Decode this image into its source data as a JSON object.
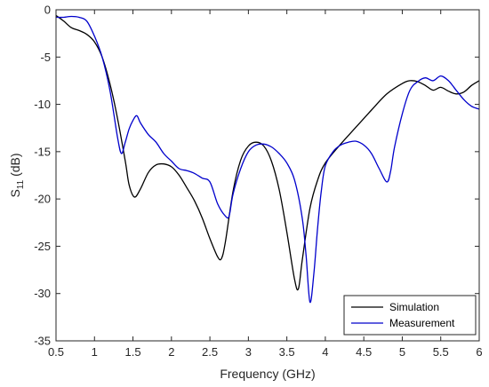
{
  "chart_data": {
    "type": "line",
    "title": "",
    "xlabel": "Frequency (GHz)",
    "ylabel_main": "S",
    "ylabel_sub": "11",
    "ylabel_unit": " (dB)",
    "xlim": [
      0.5,
      6
    ],
    "ylim": [
      -35,
      0
    ],
    "xticks": [
      0.5,
      1,
      1.5,
      2,
      2.5,
      3,
      3.5,
      4,
      4.5,
      5,
      5.5,
      6
    ],
    "xtick_labels": [
      "0.5",
      "1",
      "1.5",
      "2",
      "2.5",
      "3",
      "3.5",
      "4",
      "4.5",
      "5",
      "5.5",
      "6"
    ],
    "yticks": [
      0,
      -5,
      -10,
      -15,
      -20,
      -25,
      -30,
      -35
    ],
    "ytick_labels": [
      "0",
      "-5",
      "-10",
      "-15",
      "-20",
      "-25",
      "-30",
      "-35"
    ],
    "grid": false,
    "legend_position": "bottom-right",
    "series": [
      {
        "name": "Simulation",
        "color": "#000000",
        "points": [
          [
            0.5,
            -0.6
          ],
          [
            0.6,
            -1.2
          ],
          [
            0.7,
            -1.9
          ],
          [
            0.8,
            -2.2
          ],
          [
            0.9,
            -2.6
          ],
          [
            1.0,
            -3.4
          ],
          [
            1.1,
            -5.0
          ],
          [
            1.2,
            -7.8
          ],
          [
            1.3,
            -11.5
          ],
          [
            1.4,
            -16.0
          ],
          [
            1.45,
            -18.5
          ],
          [
            1.52,
            -19.8
          ],
          [
            1.6,
            -18.9
          ],
          [
            1.7,
            -17.2
          ],
          [
            1.8,
            -16.4
          ],
          [
            1.9,
            -16.3
          ],
          [
            2.0,
            -16.6
          ],
          [
            2.1,
            -17.5
          ],
          [
            2.2,
            -18.8
          ],
          [
            2.3,
            -20.2
          ],
          [
            2.4,
            -22.0
          ],
          [
            2.5,
            -24.2
          ],
          [
            2.6,
            -26.1
          ],
          [
            2.65,
            -26.3
          ],
          [
            2.7,
            -24.6
          ],
          [
            2.8,
            -19.2
          ],
          [
            2.9,
            -15.9
          ],
          [
            3.0,
            -14.4
          ],
          [
            3.1,
            -14.0
          ],
          [
            3.2,
            -14.4
          ],
          [
            3.3,
            -16.0
          ],
          [
            3.4,
            -19.0
          ],
          [
            3.5,
            -23.5
          ],
          [
            3.6,
            -28.5
          ],
          [
            3.65,
            -29.5
          ],
          [
            3.7,
            -26.5
          ],
          [
            3.8,
            -21.0
          ],
          [
            3.9,
            -18.0
          ],
          [
            4.0,
            -16.2
          ],
          [
            4.2,
            -14.2
          ],
          [
            4.4,
            -12.4
          ],
          [
            4.6,
            -10.6
          ],
          [
            4.8,
            -8.9
          ],
          [
            5.0,
            -7.8
          ],
          [
            5.1,
            -7.5
          ],
          [
            5.2,
            -7.6
          ],
          [
            5.3,
            -8.0
          ],
          [
            5.4,
            -8.5
          ],
          [
            5.5,
            -8.2
          ],
          [
            5.6,
            -8.6
          ],
          [
            5.7,
            -8.9
          ],
          [
            5.8,
            -8.7
          ],
          [
            5.9,
            -8.0
          ],
          [
            6.0,
            -7.5
          ]
        ]
      },
      {
        "name": "Measurement",
        "color": "#0000cc",
        "points": [
          [
            0.5,
            -0.8
          ],
          [
            0.6,
            -0.8
          ],
          [
            0.7,
            -0.7
          ],
          [
            0.8,
            -0.8
          ],
          [
            0.9,
            -1.2
          ],
          [
            1.0,
            -2.8
          ],
          [
            1.1,
            -5.0
          ],
          [
            1.2,
            -8.5
          ],
          [
            1.3,
            -13.5
          ],
          [
            1.35,
            -15.2
          ],
          [
            1.4,
            -14.0
          ],
          [
            1.45,
            -12.6
          ],
          [
            1.5,
            -11.7
          ],
          [
            1.55,
            -11.2
          ],
          [
            1.6,
            -12.0
          ],
          [
            1.7,
            -13.2
          ],
          [
            1.8,
            -14.0
          ],
          [
            1.9,
            -15.2
          ],
          [
            2.0,
            -16.0
          ],
          [
            2.1,
            -16.8
          ],
          [
            2.2,
            -17.0
          ],
          [
            2.3,
            -17.3
          ],
          [
            2.4,
            -17.8
          ],
          [
            2.5,
            -18.2
          ],
          [
            2.6,
            -20.5
          ],
          [
            2.7,
            -21.8
          ],
          [
            2.75,
            -21.8
          ],
          [
            2.8,
            -19.5
          ],
          [
            2.9,
            -16.8
          ],
          [
            3.0,
            -15.0
          ],
          [
            3.1,
            -14.3
          ],
          [
            3.2,
            -14.2
          ],
          [
            3.3,
            -14.5
          ],
          [
            3.4,
            -15.2
          ],
          [
            3.5,
            -16.2
          ],
          [
            3.6,
            -18.0
          ],
          [
            3.7,
            -22.0
          ],
          [
            3.75,
            -26.0
          ],
          [
            3.8,
            -30.9
          ],
          [
            3.85,
            -28.0
          ],
          [
            3.9,
            -23.0
          ],
          [
            3.95,
            -19.0
          ],
          [
            4.0,
            -16.5
          ],
          [
            4.1,
            -15.0
          ],
          [
            4.2,
            -14.3
          ],
          [
            4.3,
            -14.0
          ],
          [
            4.4,
            -13.9
          ],
          [
            4.5,
            -14.3
          ],
          [
            4.6,
            -15.2
          ],
          [
            4.7,
            -16.8
          ],
          [
            4.8,
            -18.2
          ],
          [
            4.85,
            -17.0
          ],
          [
            4.9,
            -14.5
          ],
          [
            5.0,
            -11.0
          ],
          [
            5.1,
            -8.5
          ],
          [
            5.2,
            -7.6
          ],
          [
            5.3,
            -7.2
          ],
          [
            5.4,
            -7.5
          ],
          [
            5.5,
            -7.0
          ],
          [
            5.6,
            -7.5
          ],
          [
            5.7,
            -8.5
          ],
          [
            5.8,
            -9.5
          ],
          [
            5.9,
            -10.2
          ],
          [
            6.0,
            -10.5
          ]
        ]
      }
    ]
  }
}
